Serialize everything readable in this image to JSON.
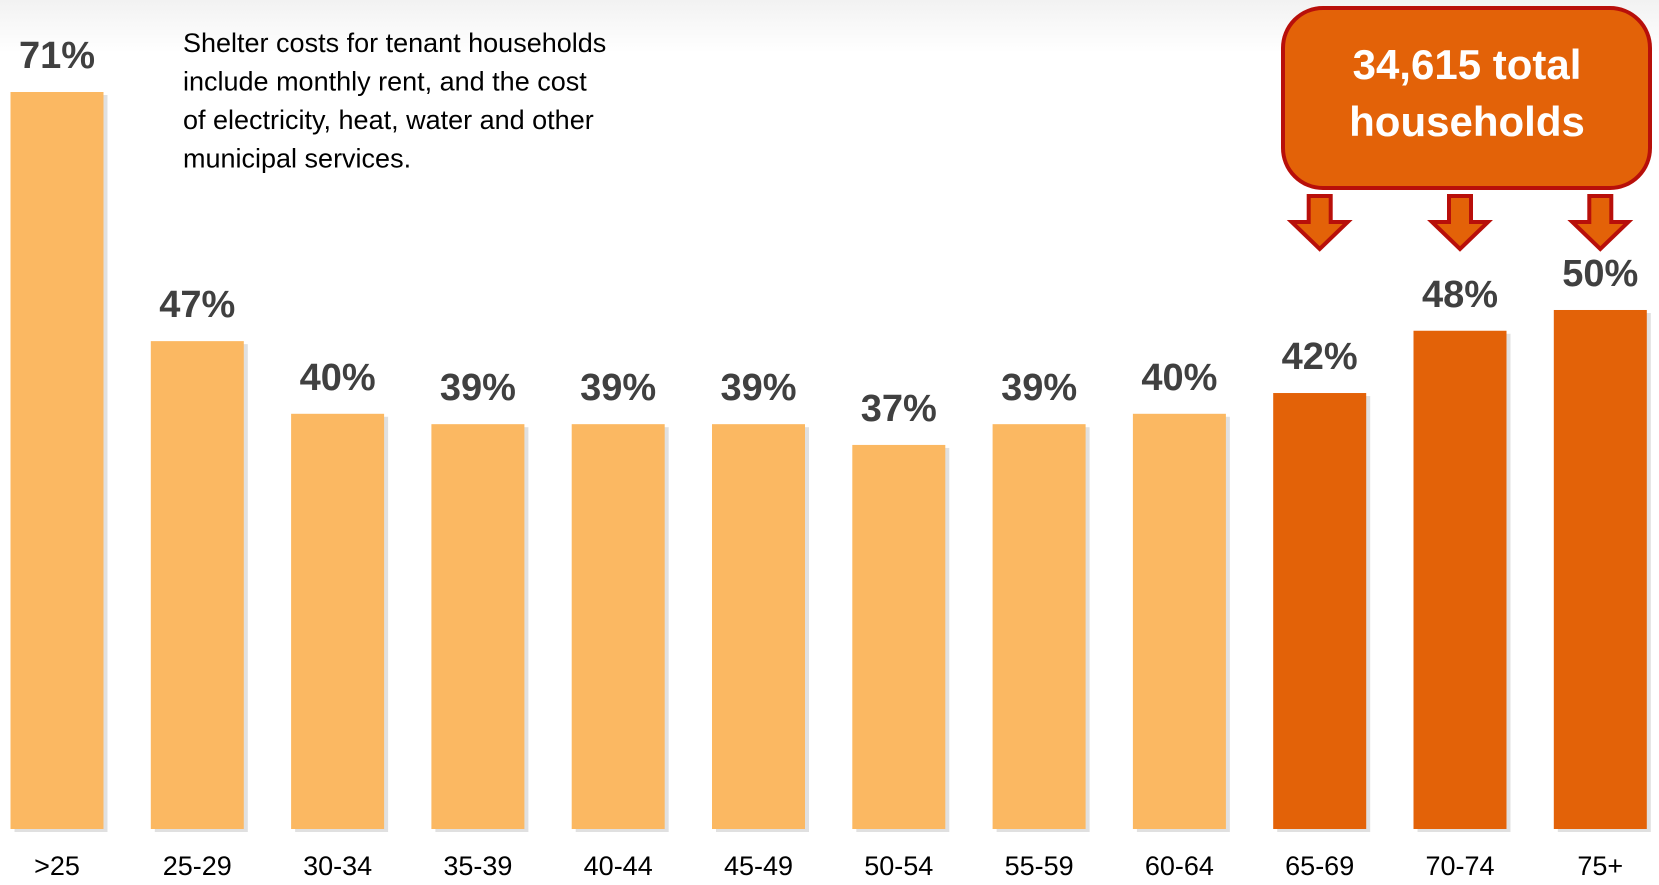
{
  "chart_data": {
    "type": "bar",
    "categories": [
      ">25",
      "25-29",
      "30-34",
      "35-39",
      "40-44",
      "45-49",
      "50-54",
      "55-59",
      "60-64",
      "65-69",
      "70-74",
      "75+"
    ],
    "values": [
      71,
      47,
      40,
      39,
      39,
      39,
      37,
      39,
      40,
      42,
      48,
      50
    ],
    "value_labels": [
      "71%",
      "47%",
      "40%",
      "39%",
      "39%",
      "39%",
      "37%",
      "39%",
      "40%",
      "42%",
      "48%",
      "50%"
    ],
    "colors": [
      "#fbb862",
      "#fbb862",
      "#fbb862",
      "#fbb862",
      "#fbb862",
      "#fbb862",
      "#fbb862",
      "#fbb862",
      "#fbb862",
      "#e36208",
      "#e36208",
      "#e36208"
    ],
    "ylim": [
      0,
      71
    ],
    "note": [
      "Shelter costs for tenant households",
      "include monthly rent, and the cost",
      "of electricity, heat, water and other",
      "municipal services."
    ],
    "callout": [
      "34,615 total",
      "households"
    ]
  }
}
